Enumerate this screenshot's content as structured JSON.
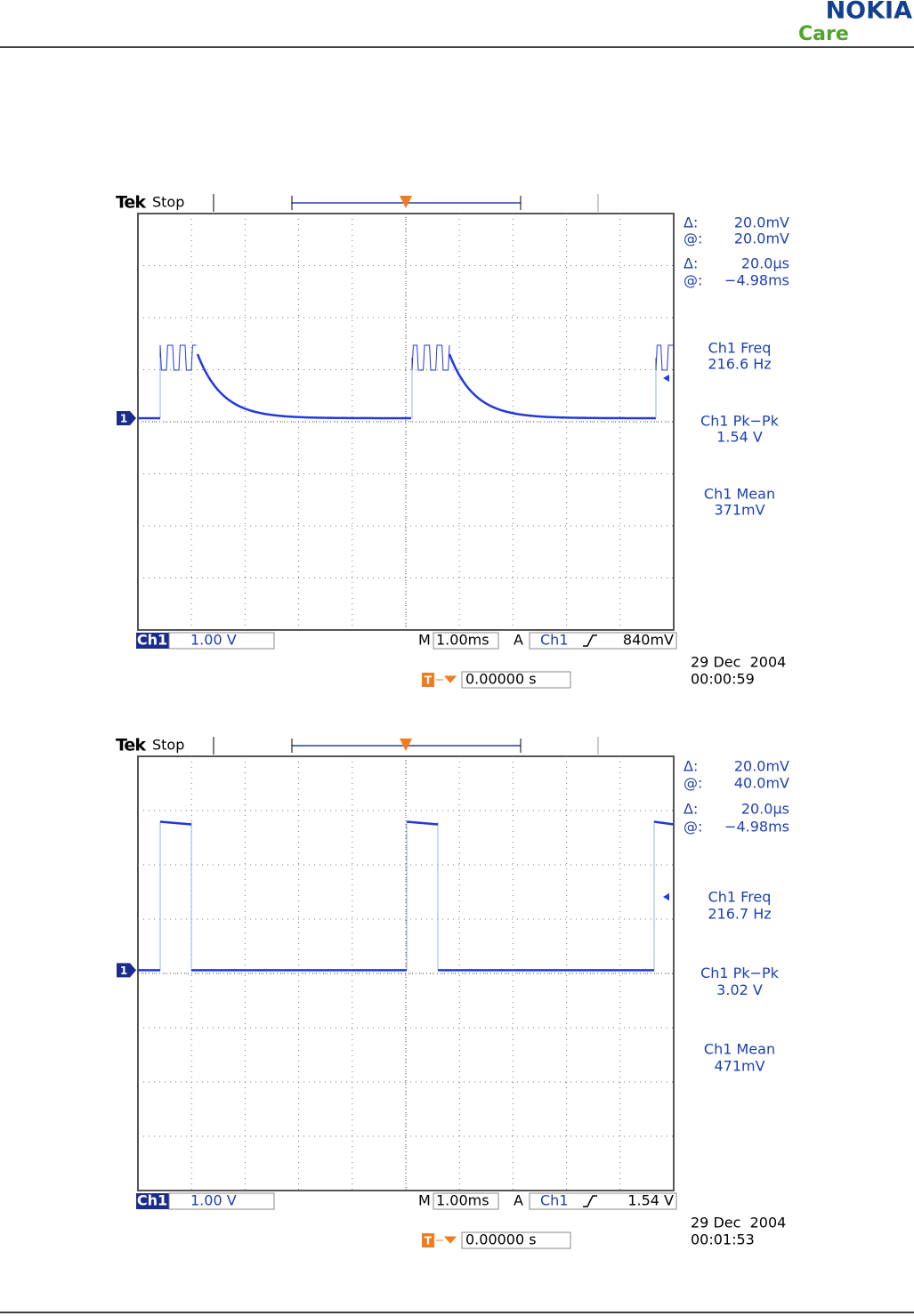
{
  "header": {
    "logo": "NOKIA",
    "subtitle": "Care"
  },
  "scopes": [
    {
      "brand": "Tek",
      "status": "Stop",
      "trigger_marker": "T",
      "channel_marker": "1",
      "cursors": [
        {
          "symbol": "Δ:",
          "value": "20.0mV"
        },
        {
          "symbol": "@:",
          "value": "20.0mV"
        },
        {
          "symbol": "Δ:",
          "value": "20.0µs"
        },
        {
          "symbol": "@:",
          "value": "−4.98ms"
        }
      ],
      "measurements": [
        {
          "name": "Ch1 Freq",
          "value": "216.6 Hz"
        },
        {
          "name": "Ch1 Pk−Pk",
          "value": "1.54 V"
        },
        {
          "name": "Ch1 Mean",
          "value": "371mV"
        }
      ],
      "channel": "Ch1",
      "volts_per_div": "1.00 V",
      "timebase_label": "M",
      "timebase": "1.00ms",
      "trigger_mode": "A",
      "trigger_source": "Ch1",
      "trigger_level": "840mV",
      "trigger_position": "0.00000 s",
      "date": "29 Dec  2004",
      "time": "00:00:59"
    },
    {
      "brand": "Tek",
      "status": "Stop",
      "trigger_marker": "T",
      "channel_marker": "1",
      "cursors": [
        {
          "symbol": "Δ:",
          "value": "20.0mV"
        },
        {
          "symbol": "@:",
          "value": "40.0mV"
        },
        {
          "symbol": "Δ:",
          "value": "20.0µs"
        },
        {
          "symbol": "@:",
          "value": "−4.98ms"
        }
      ],
      "measurements": [
        {
          "name": "Ch1 Freq",
          "value": "216.7 Hz"
        },
        {
          "name": "Ch1 Pk−Pk",
          "value": "3.02 V"
        },
        {
          "name": "Ch1 Mean",
          "value": "471mV"
        }
      ],
      "channel": "Ch1",
      "volts_per_div": "1.00 V",
      "timebase_label": "M",
      "timebase": "1.00ms",
      "trigger_mode": "A",
      "trigger_source": "Ch1",
      "trigger_level": "1.54 V",
      "trigger_position": "0.00000 s",
      "date": "29 Dec  2004",
      "time": "00:01:53"
    }
  ]
}
